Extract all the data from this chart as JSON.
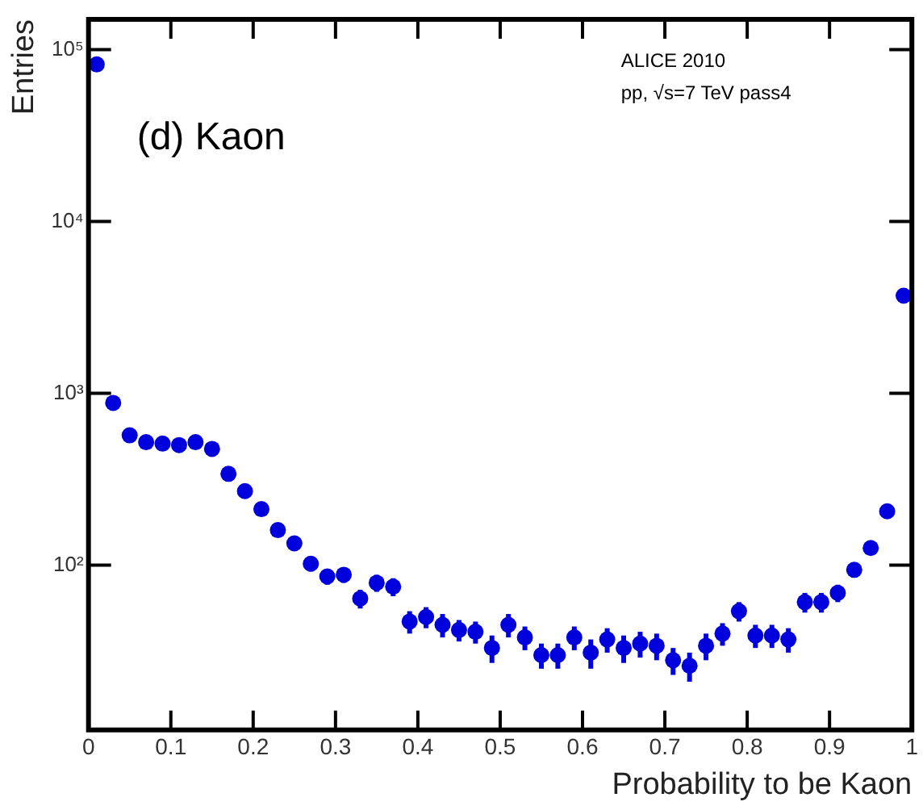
{
  "chart_data": {
    "type": "scatter",
    "xlabel": "Probability to be Kaon",
    "ylabel": "Entries",
    "annotations": [
      "(d) Kaon",
      "ALICE 2010",
      "pp, √s=7 TeV pass4"
    ],
    "x": [
      0.01,
      0.03,
      0.05,
      0.07,
      0.09,
      0.11,
      0.13,
      0.15,
      0.17,
      0.19,
      0.21,
      0.23,
      0.25,
      0.27,
      0.29,
      0.31,
      0.33,
      0.35,
      0.37,
      0.39,
      0.41,
      0.43,
      0.45,
      0.47,
      0.49,
      0.51,
      0.53,
      0.55,
      0.57,
      0.59,
      0.61,
      0.63,
      0.65,
      0.67,
      0.69,
      0.71,
      0.73,
      0.75,
      0.77,
      0.79,
      0.81,
      0.83,
      0.85,
      0.87,
      0.89,
      0.91,
      0.93,
      0.95,
      0.97,
      0.99
    ],
    "series": [
      {
        "color": "#0000dd",
        "values": [
          82000,
          880,
          570,
          520,
          510,
          500,
          520,
          475,
          340,
          270,
          212,
          160,
          134,
          102,
          86,
          88,
          64,
          79,
          75,
          47,
          50,
          45,
          42,
          41,
          33,
          45,
          38,
          30,
          30,
          38,
          31,
          37,
          33,
          35,
          34,
          28,
          26,
          34,
          40,
          54,
          39,
          39,
          37,
          61,
          61,
          69,
          94,
          126,
          206,
          3700
        ],
        "errors": [
          null,
          null,
          null,
          null,
          null,
          null,
          null,
          null,
          null,
          null,
          null,
          null,
          null,
          10,
          9,
          9,
          8,
          9,
          9,
          7,
          7,
          7,
          6,
          6,
          6,
          7,
          6,
          5,
          5,
          6,
          6,
          6,
          6,
          6,
          6,
          5,
          5,
          6,
          6,
          7,
          6,
          6,
          6,
          8,
          8,
          8,
          null,
          null,
          null,
          null
        ]
      }
    ],
    "xlim": [
      0,
      1
    ],
    "xticks": [
      0,
      0.1,
      0.2,
      0.3,
      0.4,
      0.5,
      0.6,
      0.7,
      0.8,
      0.9,
      1
    ],
    "ylim": [
      11,
      150000
    ],
    "yticks": [
      {
        "value": 100,
        "label": "10²"
      },
      {
        "value": 1000,
        "label": "10³"
      },
      {
        "value": 10000,
        "label": "10⁴"
      },
      {
        "value": 100000,
        "label": "10⁵"
      }
    ],
    "log": true,
    "grid": false,
    "legend": false,
    "marker": "circle"
  }
}
